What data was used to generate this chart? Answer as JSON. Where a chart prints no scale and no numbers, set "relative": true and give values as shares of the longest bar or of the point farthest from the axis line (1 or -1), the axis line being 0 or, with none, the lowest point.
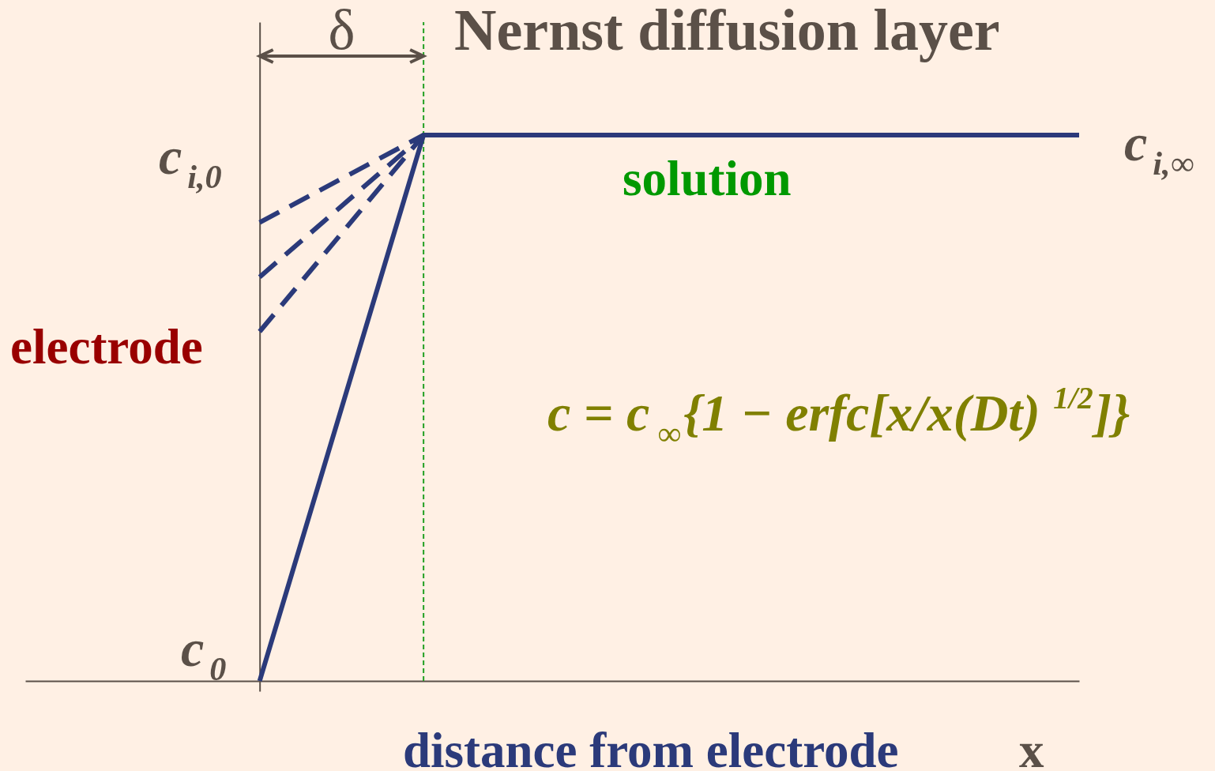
{
  "chart_data": {
    "type": "line",
    "title": "Nernst diffusion layer",
    "xlabel": "distance from electrode",
    "relative": true,
    "line_style": "solid",
    "categories": [
      null,
      null,
      null,
      null,
      null,
      null
    ],
    "series": [
      {
        "color": "#2b3a7a",
        "values": [
          0,
          1,
          1,
          1,
          1,
          1
        ]
      },
      {
        "color": "#2b3a7a",
        "line_style": "dashed",
        "values": [
          0.84,
          1,
          null,
          null,
          null,
          null
        ]
      },
      {
        "color": "#2b3a7a",
        "line_style": "dashed",
        "values": [
          0.74,
          1,
          null,
          null,
          null,
          null
        ]
      },
      {
        "color": "#2b3a7a",
        "line_style": "dashed",
        "values": [
          0.64,
          1,
          null,
          null,
          null,
          null
        ]
      }
    ],
    "ref_lines": [
      {
        "axis": "x",
        "label": "δ",
        "color": "#22a022",
        "line_style": "dashed"
      }
    ],
    "annotations": [
      "electrode",
      "solution",
      "c = c$_{∞}${1 − erfc[x/x(Dt)$^{1/2}$]}",
      "x",
      "c$_{i,0}$",
      "c$_{0}$",
      "c$_{i,∞}$"
    ]
  }
}
